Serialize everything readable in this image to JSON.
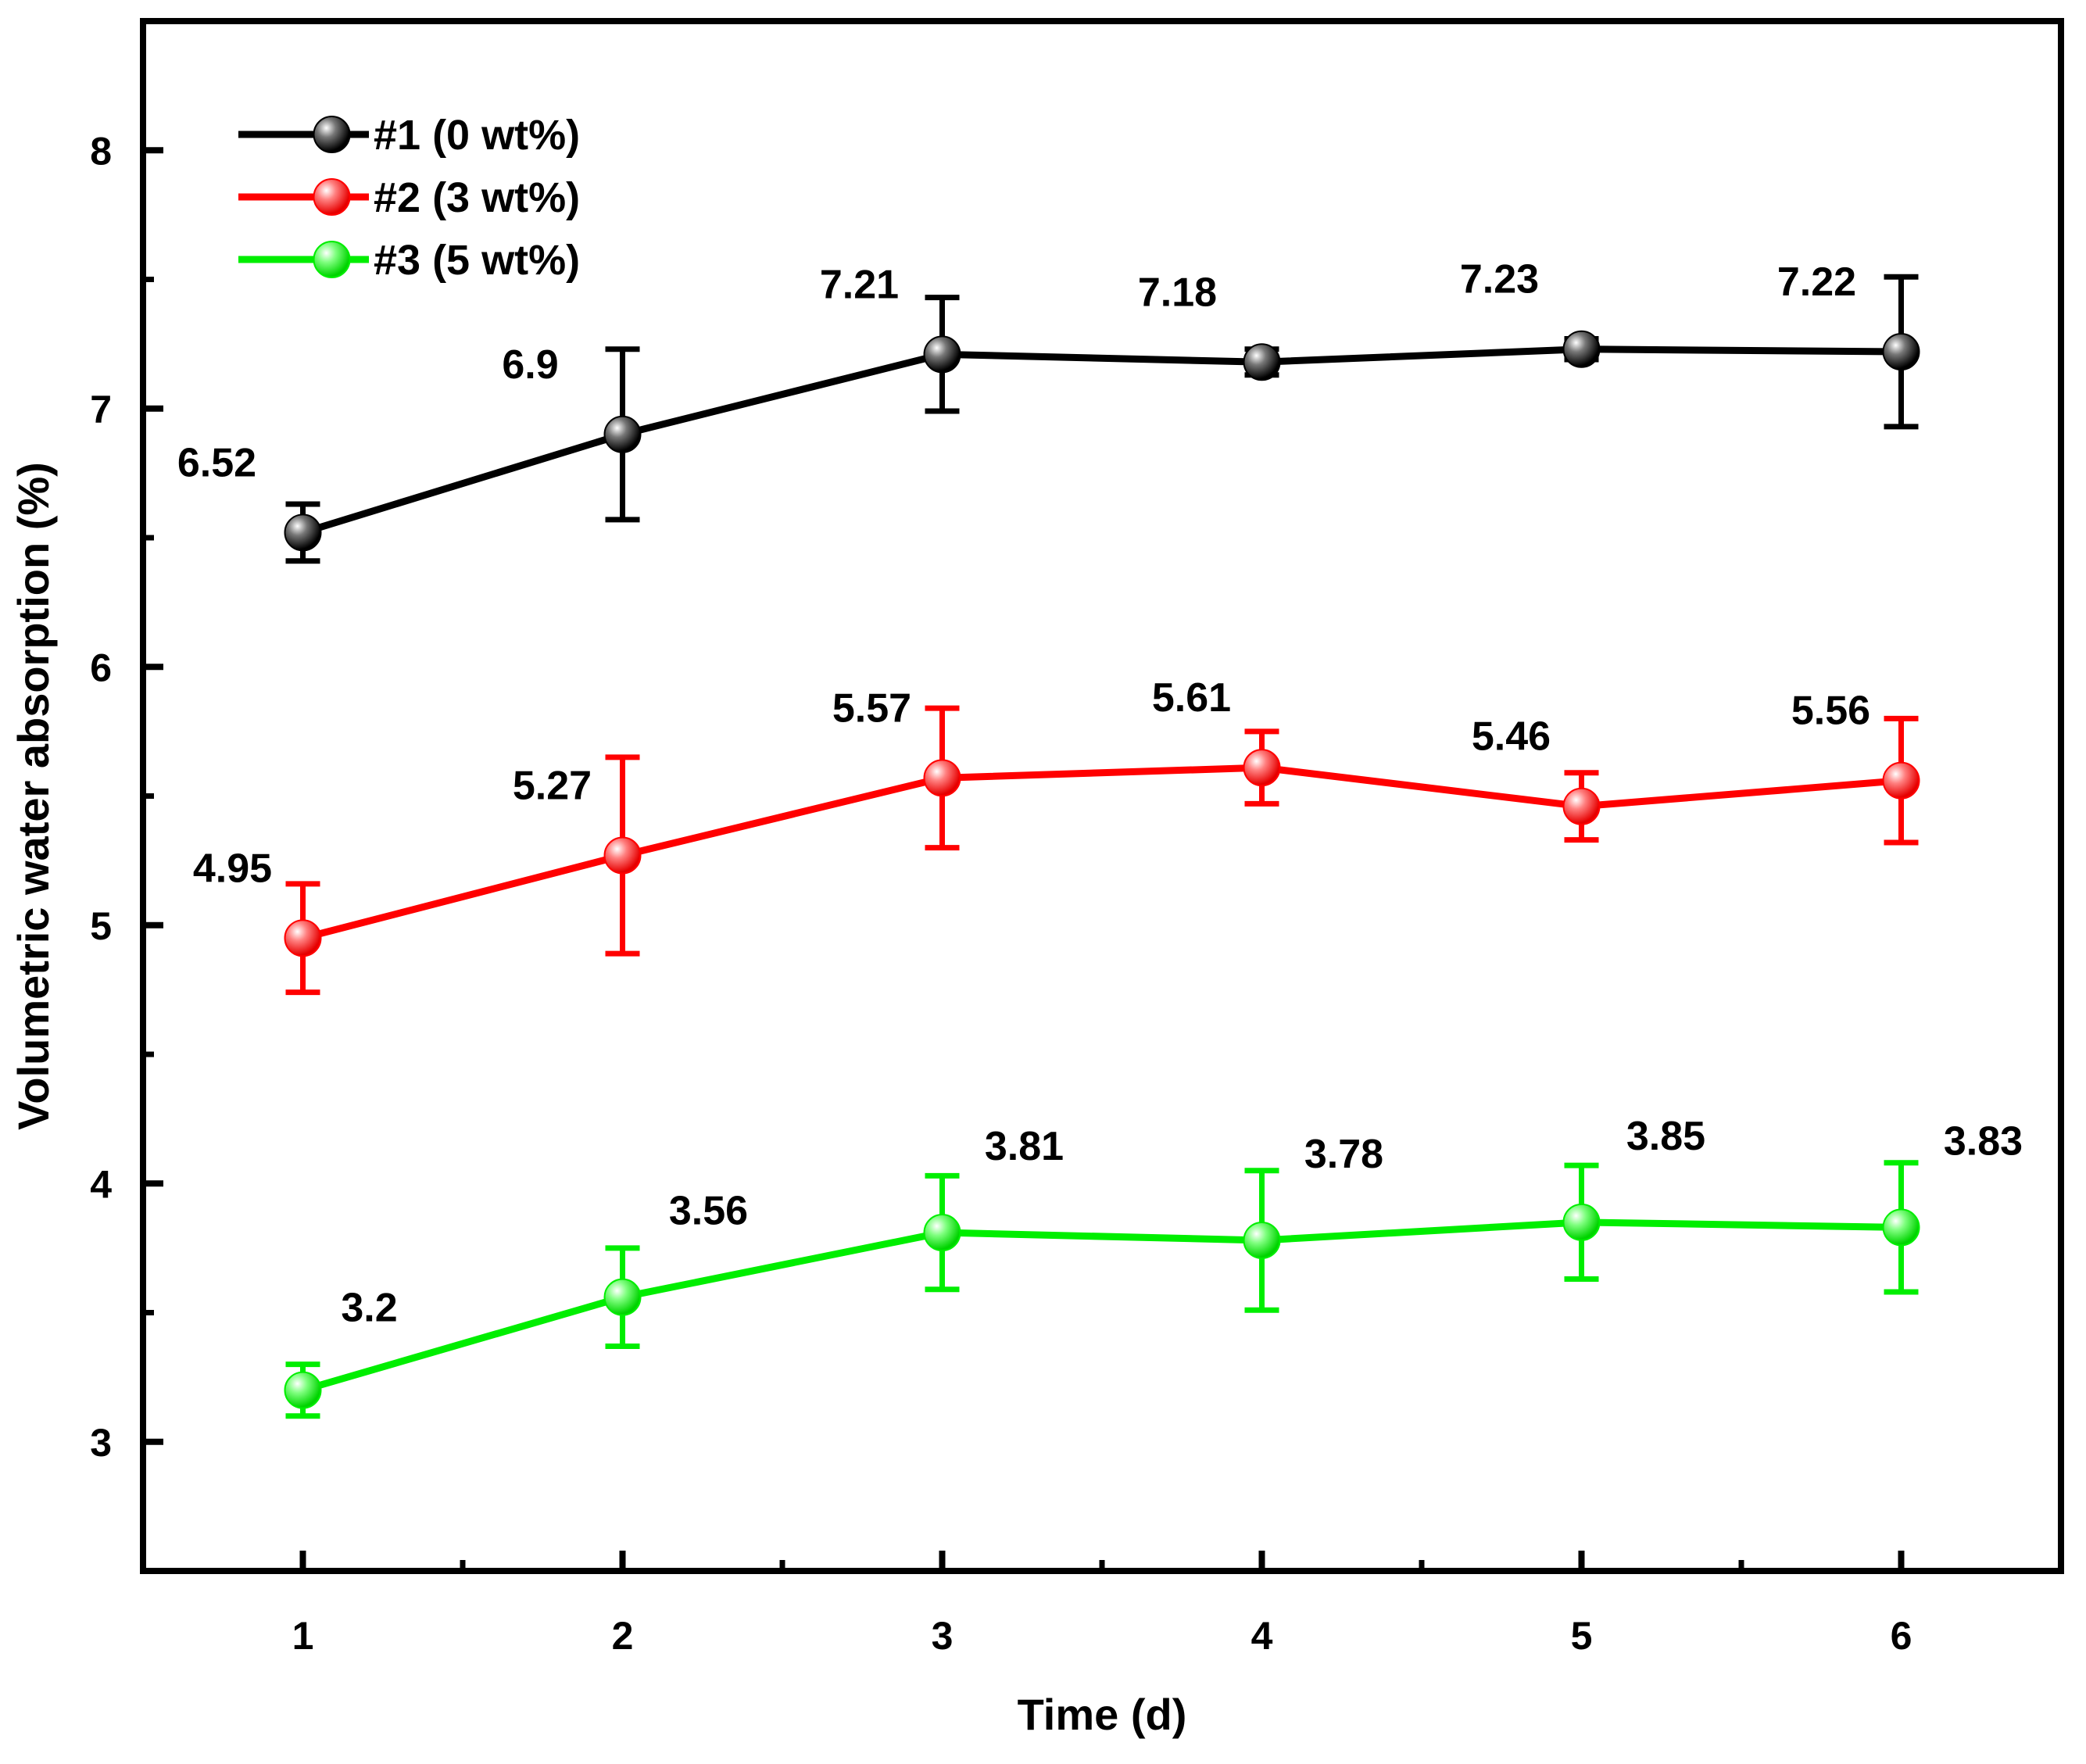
{
  "chart_data": {
    "type": "line",
    "xlabel": "Time (d)",
    "ylabel": "Volumetric water absorption (%)",
    "x": [
      1,
      2,
      3,
      4,
      5,
      6
    ],
    "xlim": [
      0.5,
      6.5
    ],
    "ylim": [
      2.5,
      8.5
    ],
    "x_ticks": [
      1,
      2,
      3,
      4,
      5,
      6
    ],
    "y_ticks": [
      3,
      4,
      5,
      6,
      7,
      8
    ],
    "grid": false,
    "legend_position": "top-left",
    "series": [
      {
        "name": "#1 (0 wt%)",
        "color": "#000000",
        "values": [
          6.52,
          6.9,
          7.21,
          7.18,
          7.23,
          7.22
        ],
        "errors": [
          0.11,
          0.33,
          0.22,
          0.05,
          0.04,
          0.29
        ],
        "labels": [
          "6.52",
          "6.9",
          "7.21",
          "7.18",
          "7.23",
          "7.22"
        ]
      },
      {
        "name": "#2 (3 wt%)",
        "color": "#ff0000",
        "values": [
          4.95,
          5.27,
          5.57,
          5.61,
          5.46,
          5.56
        ],
        "errors": [
          0.21,
          0.38,
          0.27,
          0.14,
          0.13,
          0.24
        ],
        "labels": [
          "4.95",
          "5.27",
          "5.57",
          "5.61",
          "5.46",
          "5.56"
        ]
      },
      {
        "name": "#3 (5 wt%)",
        "color": "#00ee00",
        "values": [
          3.2,
          3.56,
          3.81,
          3.78,
          3.85,
          3.83
        ],
        "errors": [
          0.1,
          0.19,
          0.22,
          0.27,
          0.22,
          0.25
        ],
        "labels": [
          "3.2",
          "3.56",
          "3.81",
          "3.78",
          "3.85",
          "3.83"
        ]
      }
    ]
  }
}
